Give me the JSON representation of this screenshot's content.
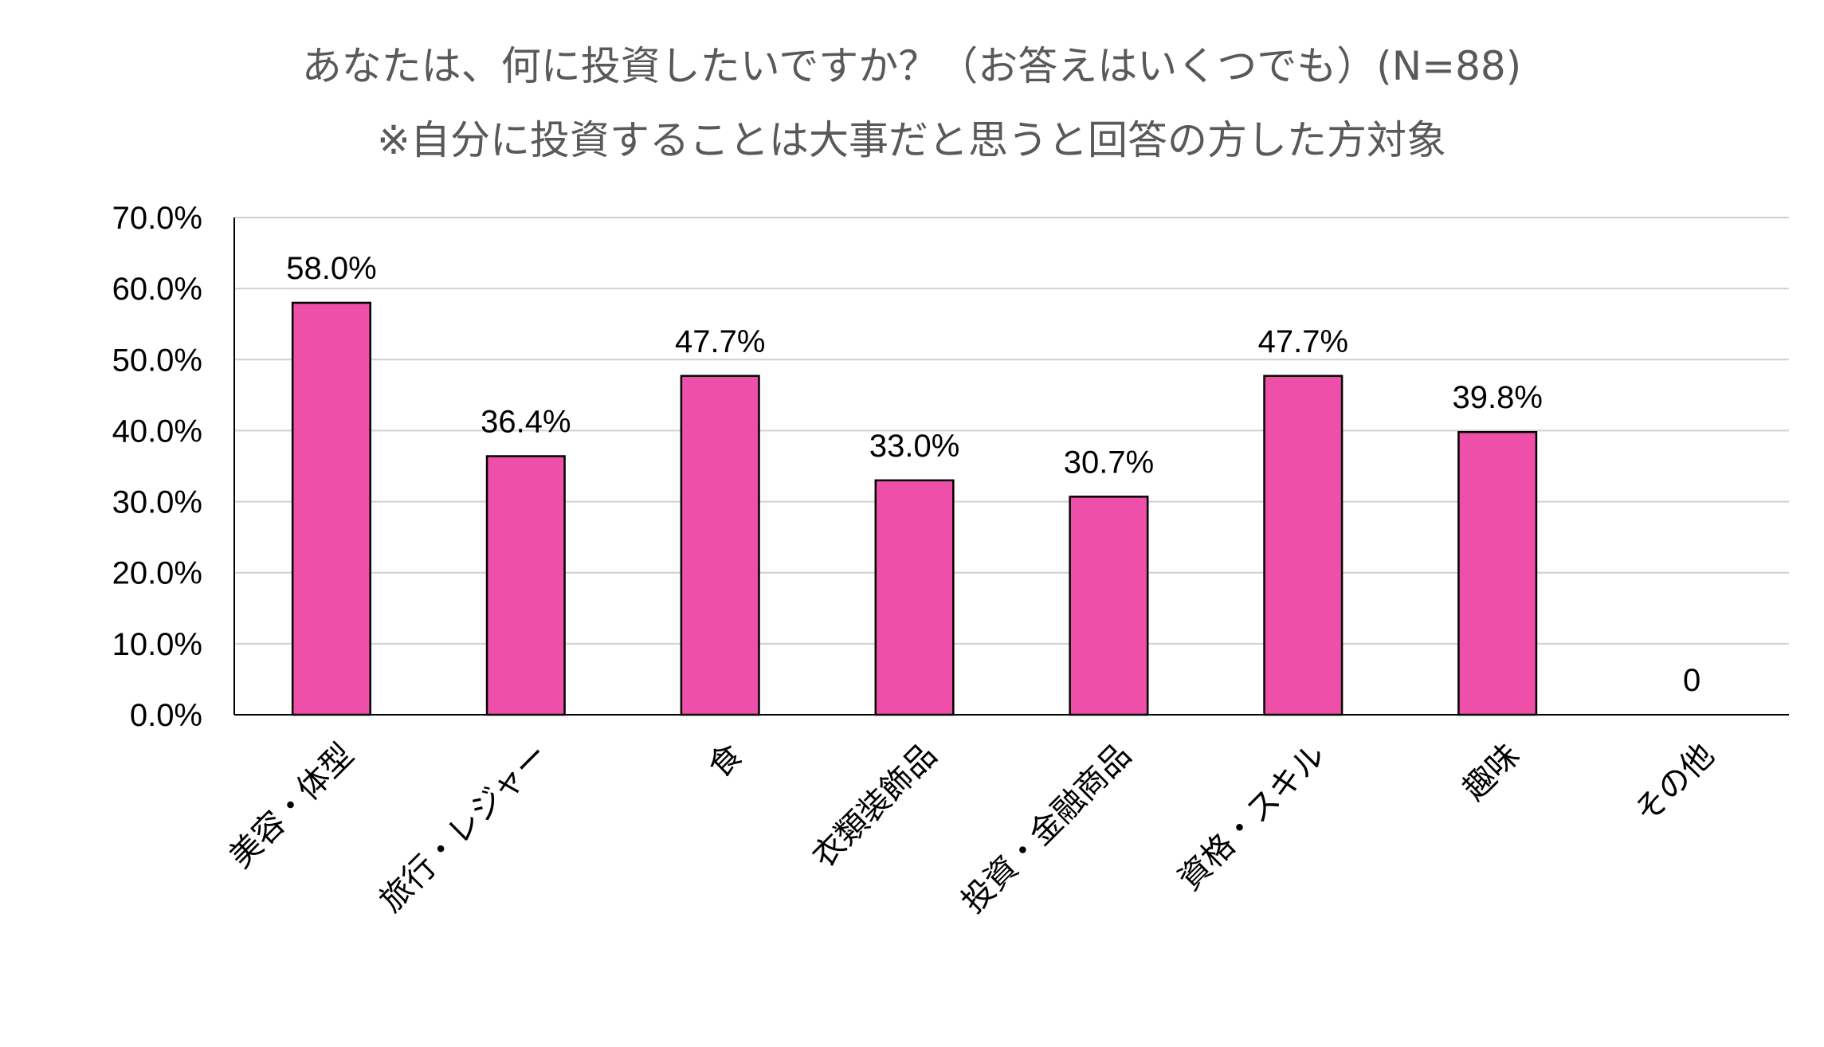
{
  "chart_data": {
    "type": "bar",
    "title": "あなたは、何に投資したいですか？（お答えはいくつでも）(N=88)",
    "subtitle": "※自分に投資することは大事だと思うと回答の方した方対象",
    "categories": [
      "美容・体型",
      "旅行・レジャー",
      "食",
      "衣類装飾品",
      "投資・金融商品",
      "資格・スキル",
      "趣味",
      "その他"
    ],
    "values": [
      58.0,
      36.4,
      47.7,
      33.0,
      30.7,
      47.7,
      39.8,
      0
    ],
    "data_labels": [
      "58.0%",
      "36.4%",
      "47.7%",
      "33.0%",
      "30.7%",
      "47.7%",
      "39.8%",
      "0"
    ],
    "y_ticks": [
      0,
      10,
      20,
      30,
      40,
      50,
      60,
      70
    ],
    "y_tick_labels": [
      "0.0%",
      "10.0%",
      "20.0%",
      "30.0%",
      "40.0%",
      "50.0%",
      "60.0%",
      "70.0%"
    ],
    "ylim": [
      0,
      70
    ],
    "xlabel": "",
    "ylabel": "",
    "grid": true,
    "legend": "none",
    "bar_color": "#ee4fa8"
  }
}
